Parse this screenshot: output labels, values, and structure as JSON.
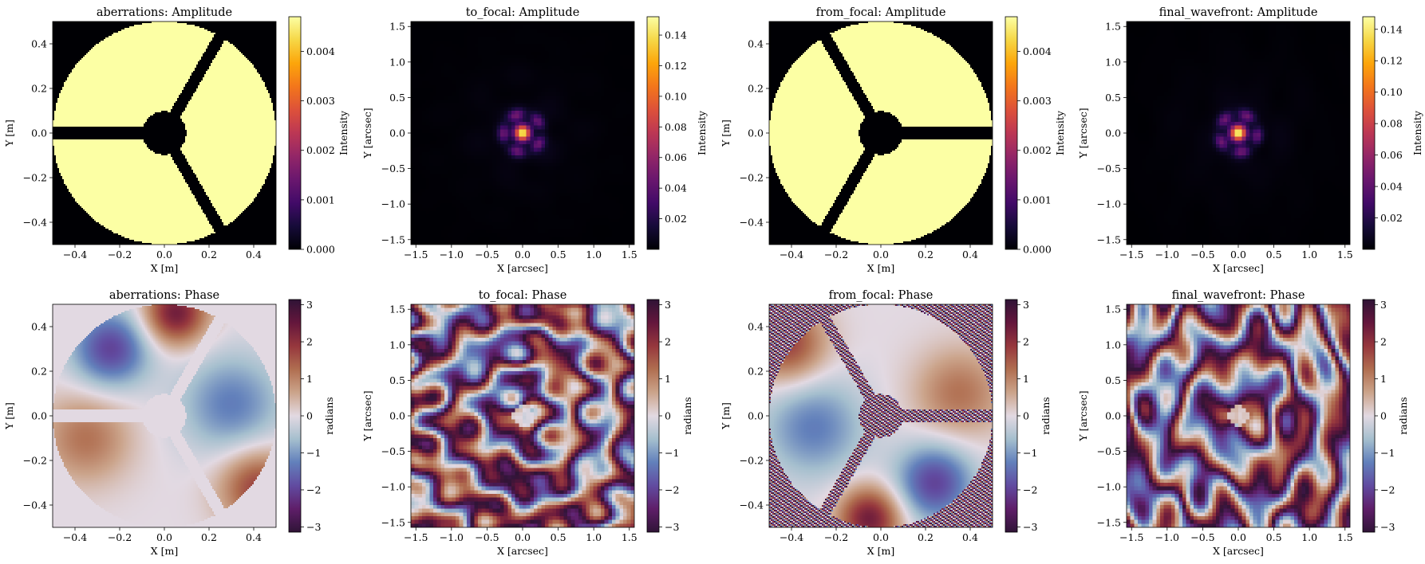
{
  "chart_data": [
    {
      "type": "heatmap",
      "title": "aberrations: Amplitude",
      "xlabel": "X [m]",
      "ylabel": "Y [m]",
      "xlim": [
        -0.5,
        0.5
      ],
      "ylim": [
        -0.5,
        0.5
      ],
      "xticks": [
        {
          "v": -0.4,
          "t": "−0.4"
        },
        {
          "v": -0.2,
          "t": "−0.2"
        },
        {
          "v": 0,
          "t": "0.0"
        },
        {
          "v": 0.2,
          "t": "0.2"
        },
        {
          "v": 0.4,
          "t": "0.4"
        }
      ],
      "yticks": [
        {
          "v": -0.4,
          "t": "−0.4"
        },
        {
          "v": -0.2,
          "t": "−0.2"
        },
        {
          "v": 0,
          "t": "0.0"
        },
        {
          "v": 0.2,
          "t": "0.2"
        },
        {
          "v": 0.4,
          "t": "0.4"
        }
      ],
      "colorbar": {
        "label": "Intensity",
        "cmap": "inferno",
        "range": [
          0,
          0.0047
        ],
        "ticks": [
          {
            "v": 0,
            "t": "0.000"
          },
          {
            "v": 0.001,
            "t": "0.001"
          },
          {
            "v": 0.002,
            "t": "0.002"
          },
          {
            "v": 0.003,
            "t": "0.003"
          },
          {
            "v": 0.004,
            "t": "0.004"
          }
        ]
      },
      "content": "pupil",
      "spiderRotationDeg": 0,
      "value": 0.0047
    },
    {
      "type": "heatmap",
      "title": "to_focal: Amplitude",
      "xlabel": "X [arcsec]",
      "ylabel": "Y [arcsec]",
      "xlim": [
        -1.57,
        1.57
      ],
      "ylim": [
        -1.57,
        1.57
      ],
      "xticks": [
        {
          "v": -1.5,
          "t": "−1.5"
        },
        {
          "v": -1,
          "t": "−1.0"
        },
        {
          "v": -0.5,
          "t": "−0.5"
        },
        {
          "v": 0,
          "t": "0.0"
        },
        {
          "v": 0.5,
          "t": "0.5"
        },
        {
          "v": 1,
          "t": "1.0"
        },
        {
          "v": 1.5,
          "t": "1.5"
        }
      ],
      "yticks": [
        {
          "v": -1.5,
          "t": "−1.5"
        },
        {
          "v": -1,
          "t": "−1.0"
        },
        {
          "v": -0.5,
          "t": "−0.5"
        },
        {
          "v": 0,
          "t": "0.0"
        },
        {
          "v": 0.5,
          "t": "0.5"
        },
        {
          "v": 1,
          "t": "1.0"
        },
        {
          "v": 1.5,
          "t": "1.5"
        }
      ],
      "colorbar": {
        "label": "Intensity",
        "cmap": "inferno",
        "range": [
          0,
          0.152
        ],
        "ticks": [
          {
            "v": 0.02,
            "t": "0.02"
          },
          {
            "v": 0.04,
            "t": "0.04"
          },
          {
            "v": 0.06,
            "t": "0.06"
          },
          {
            "v": 0.08,
            "t": "0.08"
          },
          {
            "v": 0.1,
            "t": "0.10"
          },
          {
            "v": 0.12,
            "t": "0.12"
          },
          {
            "v": 0.14,
            "t": "0.14"
          }
        ]
      },
      "content": "psf",
      "peak": 0.148,
      "seed": 3
    },
    {
      "type": "heatmap",
      "title": "from_focal: Amplitude",
      "xlabel": "X [m]",
      "ylabel": "Y [m]",
      "xlim": [
        -0.5,
        0.5
      ],
      "ylim": [
        -0.5,
        0.5
      ],
      "xticks": [
        {
          "v": -0.4,
          "t": "−0.4"
        },
        {
          "v": -0.2,
          "t": "−0.2"
        },
        {
          "v": 0,
          "t": "0.0"
        },
        {
          "v": 0.2,
          "t": "0.2"
        },
        {
          "v": 0.4,
          "t": "0.4"
        }
      ],
      "yticks": [
        {
          "v": -0.4,
          "t": "−0.4"
        },
        {
          "v": -0.2,
          "t": "−0.2"
        },
        {
          "v": 0,
          "t": "0.0"
        },
        {
          "v": 0.2,
          "t": "0.2"
        },
        {
          "v": 0.4,
          "t": "0.4"
        }
      ],
      "colorbar": {
        "label": "Intensity",
        "cmap": "inferno",
        "range": [
          0,
          0.0047
        ],
        "ticks": [
          {
            "v": 0,
            "t": "0.000"
          },
          {
            "v": 0.001,
            "t": "0.001"
          },
          {
            "v": 0.002,
            "t": "0.002"
          },
          {
            "v": 0.003,
            "t": "0.003"
          },
          {
            "v": 0.004,
            "t": "0.004"
          }
        ]
      },
      "content": "pupil",
      "spiderRotationDeg": 180,
      "value": 0.0047
    },
    {
      "type": "heatmap",
      "title": "final_wavefront: Amplitude",
      "xlabel": "X [arcsec]",
      "ylabel": "Y [arcsec]",
      "xlim": [
        -1.57,
        1.57
      ],
      "ylim": [
        -1.57,
        1.57
      ],
      "xticks": [
        {
          "v": -1.5,
          "t": "−1.5"
        },
        {
          "v": -1,
          "t": "−1.0"
        },
        {
          "v": -0.5,
          "t": "−0.5"
        },
        {
          "v": 0,
          "t": "0.0"
        },
        {
          "v": 0.5,
          "t": "0.5"
        },
        {
          "v": 1,
          "t": "1.0"
        },
        {
          "v": 1.5,
          "t": "1.5"
        }
      ],
      "yticks": [
        {
          "v": -1.5,
          "t": "−1.5"
        },
        {
          "v": -1,
          "t": "−1.0"
        },
        {
          "v": -0.5,
          "t": "−0.5"
        },
        {
          "v": 0,
          "t": "0.0"
        },
        {
          "v": 0.5,
          "t": "0.5"
        },
        {
          "v": 1,
          "t": "1.0"
        },
        {
          "v": 1.5,
          "t": "1.5"
        }
      ],
      "colorbar": {
        "label": "Intensity",
        "cmap": "inferno",
        "range": [
          0,
          0.148
        ],
        "ticks": [
          {
            "v": 0.02,
            "t": "0.02"
          },
          {
            "v": 0.04,
            "t": "0.04"
          },
          {
            "v": 0.06,
            "t": "0.06"
          },
          {
            "v": 0.08,
            "t": "0.08"
          },
          {
            "v": 0.1,
            "t": "0.10"
          },
          {
            "v": 0.12,
            "t": "0.12"
          },
          {
            "v": 0.14,
            "t": "0.14"
          }
        ]
      },
      "content": "psf",
      "peak": 0.145,
      "seed": 7
    },
    {
      "type": "heatmap",
      "title": "aberrations: Phase",
      "xlabel": "X [m]",
      "ylabel": "Y [m]",
      "xlim": [
        -0.5,
        0.5
      ],
      "ylim": [
        -0.5,
        0.5
      ],
      "xticks": [
        {
          "v": -0.4,
          "t": "−0.4"
        },
        {
          "v": -0.2,
          "t": "−0.2"
        },
        {
          "v": 0,
          "t": "0.0"
        },
        {
          "v": 0.2,
          "t": "0.2"
        },
        {
          "v": 0.4,
          "t": "0.4"
        }
      ],
      "yticks": [
        {
          "v": -0.4,
          "t": "−0.4"
        },
        {
          "v": -0.2,
          "t": "−0.2"
        },
        {
          "v": 0,
          "t": "0.0"
        },
        {
          "v": 0.2,
          "t": "0.2"
        },
        {
          "v": 0.4,
          "t": "0.4"
        }
      ],
      "colorbar": {
        "label": "radians",
        "cmap": "twilight_shifted",
        "range": [
          -3.1416,
          3.1416
        ],
        "ticks": [
          {
            "v": -3,
            "t": "−3"
          },
          {
            "v": -2,
            "t": "−2"
          },
          {
            "v": -1,
            "t": "−1"
          },
          {
            "v": 0,
            "t": "0"
          },
          {
            "v": 1,
            "t": "1"
          },
          {
            "v": 2,
            "t": "2"
          },
          {
            "v": 3,
            "t": "3"
          }
        ]
      },
      "content": "phase_pupil",
      "spiderRotationDeg": 0,
      "noise": false
    },
    {
      "type": "heatmap",
      "title": "to_focal: Phase",
      "xlabel": "X [arcsec]",
      "ylabel": "Y [arcsec]",
      "xlim": [
        -1.57,
        1.57
      ],
      "ylim": [
        -1.57,
        1.57
      ],
      "xticks": [
        {
          "v": -1.5,
          "t": "−1.5"
        },
        {
          "v": -1,
          "t": "−1.0"
        },
        {
          "v": -0.5,
          "t": "−0.5"
        },
        {
          "v": 0,
          "t": "0.0"
        },
        {
          "v": 0.5,
          "t": "0.5"
        },
        {
          "v": 1,
          "t": "1.0"
        },
        {
          "v": 1.5,
          "t": "1.5"
        }
      ],
      "yticks": [
        {
          "v": -1.5,
          "t": "−1.5"
        },
        {
          "v": -1,
          "t": "−1.0"
        },
        {
          "v": -0.5,
          "t": "−0.5"
        },
        {
          "v": 0,
          "t": "0.0"
        },
        {
          "v": 0.5,
          "t": "0.5"
        },
        {
          "v": 1,
          "t": "1.0"
        },
        {
          "v": 1.5,
          "t": "1.5"
        }
      ],
      "colorbar": {
        "label": "radians",
        "cmap": "twilight_shifted",
        "range": [
          -3.1416,
          3.1416
        ],
        "ticks": [
          {
            "v": -3,
            "t": "−3"
          },
          {
            "v": -2,
            "t": "−2"
          },
          {
            "v": -1,
            "t": "−1"
          },
          {
            "v": 0,
            "t": "0"
          },
          {
            "v": 1,
            "t": "1"
          },
          {
            "v": 2,
            "t": "2"
          },
          {
            "v": 3,
            "t": "3"
          }
        ]
      },
      "content": "phase_focal",
      "seed": 3
    },
    {
      "type": "heatmap",
      "title": "from_focal: Phase",
      "xlabel": "X [m]",
      "ylabel": "Y [m]",
      "xlim": [
        -0.5,
        0.5
      ],
      "ylim": [
        -0.5,
        0.5
      ],
      "xticks": [
        {
          "v": -0.4,
          "t": "−0.4"
        },
        {
          "v": -0.2,
          "t": "−0.2"
        },
        {
          "v": 0,
          "t": "0.0"
        },
        {
          "v": 0.2,
          "t": "0.2"
        },
        {
          "v": 0.4,
          "t": "0.4"
        }
      ],
      "yticks": [
        {
          "v": -0.4,
          "t": "−0.4"
        },
        {
          "v": -0.2,
          "t": "−0.2"
        },
        {
          "v": 0,
          "t": "0.0"
        },
        {
          "v": 0.2,
          "t": "0.2"
        },
        {
          "v": 0.4,
          "t": "0.4"
        }
      ],
      "colorbar": {
        "label": "radians",
        "cmap": "twilight_shifted",
        "range": [
          -3.1416,
          3.1416
        ],
        "ticks": [
          {
            "v": -3,
            "t": "−3"
          },
          {
            "v": -2,
            "t": "−2"
          },
          {
            "v": -1,
            "t": "−1"
          },
          {
            "v": 0,
            "t": "0"
          },
          {
            "v": 1,
            "t": "1"
          },
          {
            "v": 2,
            "t": "2"
          },
          {
            "v": 3,
            "t": "3"
          }
        ]
      },
      "content": "phase_pupil",
      "spiderRotationDeg": 180,
      "noise": true
    },
    {
      "type": "heatmap",
      "title": "final_wavefront: Phase",
      "xlabel": "X [arcsec]",
      "ylabel": "Y [arcsec]",
      "xlim": [
        -1.57,
        1.57
      ],
      "ylim": [
        -1.57,
        1.57
      ],
      "xticks": [
        {
          "v": -1.5,
          "t": "−1.5"
        },
        {
          "v": -1,
          "t": "−1.0"
        },
        {
          "v": -0.5,
          "t": "−0.5"
        },
        {
          "v": 0,
          "t": "0.0"
        },
        {
          "v": 0.5,
          "t": "0.5"
        },
        {
          "v": 1,
          "t": "1.0"
        },
        {
          "v": 1.5,
          "t": "1.5"
        }
      ],
      "yticks": [
        {
          "v": -1.5,
          "t": "−1.5"
        },
        {
          "v": -1,
          "t": "−1.0"
        },
        {
          "v": -0.5,
          "t": "−0.5"
        },
        {
          "v": 0,
          "t": "0.0"
        },
        {
          "v": 0.5,
          "t": "0.5"
        },
        {
          "v": 1,
          "t": "1.0"
        },
        {
          "v": 1.5,
          "t": "1.5"
        }
      ],
      "colorbar": {
        "label": "radians",
        "cmap": "twilight_shifted",
        "range": [
          -3.1416,
          3.1416
        ],
        "ticks": [
          {
            "v": -3,
            "t": "−3"
          },
          {
            "v": -2,
            "t": "−2"
          },
          {
            "v": -1,
            "t": "−1"
          },
          {
            "v": 0,
            "t": "0"
          },
          {
            "v": 1,
            "t": "1"
          },
          {
            "v": 2,
            "t": "2"
          },
          {
            "v": 3,
            "t": "3"
          }
        ]
      },
      "content": "phase_focal",
      "seed": 7
    }
  ]
}
